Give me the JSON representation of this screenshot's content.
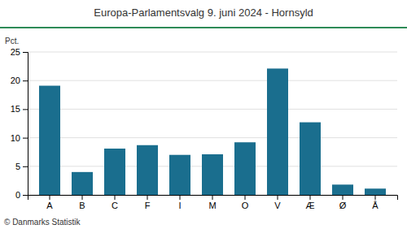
{
  "chart_data": {
    "type": "bar",
    "title": "Europa-Parlamentsvalg 9. juni 2024 - Hornsyld",
    "ylabel": "Pct.",
    "categories": [
      "A",
      "B",
      "C",
      "F",
      "I",
      "M",
      "O",
      "V",
      "Æ",
      "Ø",
      "Å"
    ],
    "values": [
      19.1,
      4.0,
      8.1,
      8.7,
      7.0,
      7.1,
      9.2,
      22.1,
      12.7,
      1.8,
      1.1
    ],
    "color": "#1a6e8e",
    "ylim": [
      0,
      25
    ],
    "yticks": [
      0,
      5,
      10,
      15,
      20,
      25
    ],
    "grid": true,
    "annotations": [
      "© Danmarks Statistik"
    ]
  }
}
